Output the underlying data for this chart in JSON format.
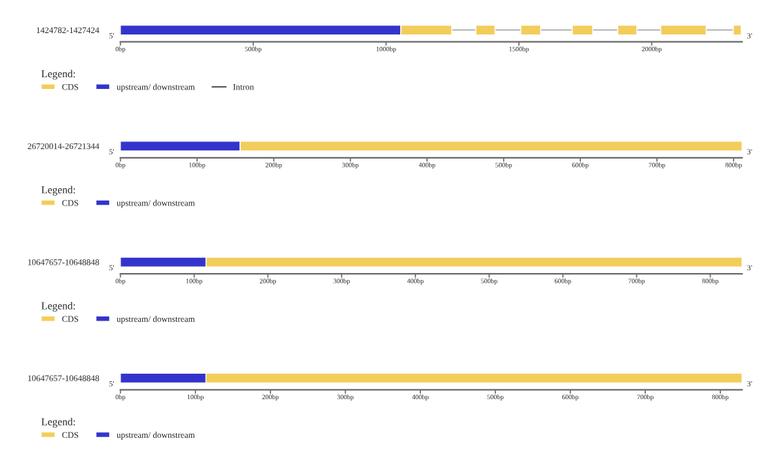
{
  "chart_data": [
    {
      "type": "bar",
      "orientation": "horizontal",
      "categories": [
        "1424782-1427424"
      ],
      "legend_title": "Legend:",
      "legend": "bottom left",
      "annotations": [
        "5'",
        "3'"
      ],
      "series": [
        {
          "name": "CDS",
          "color": "#f3cd5a",
          "values": [
            192
          ],
          "base": [
            1055
          ]
        },
        {
          "color": "#f3cd5a",
          "values": [
            72
          ],
          "base": [
            1338
          ]
        },
        {
          "color": "#f3cd5a",
          "values": [
            75
          ],
          "base": [
            1507
          ]
        },
        {
          "color": "#f3cd5a",
          "values": [
            77
          ],
          "base": [
            1701
          ]
        },
        {
          "color": "#f3cd5a",
          "values": [
            72
          ],
          "base": [
            1872
          ]
        },
        {
          "color": "#f3cd5a",
          "values": [
            171
          ],
          "base": [
            2034
          ]
        },
        {
          "color": "#f3cd5a",
          "values": [
            30
          ],
          "base": [
            2307
          ]
        },
        {
          "name": "upstream/ downstream",
          "color": "#3434cc",
          "values": [
            1055
          ],
          "base": [
            0
          ]
        },
        {
          "name": "Intron",
          "type": "bar",
          "line_style": "solid",
          "color": "#555555",
          "values": [
            1060
          ],
          "base": [
            1247
          ]
        }
      ],
      "xlim": [
        0,
        2340
      ],
      "xticks": [
        {
          "value": 0,
          "label": "0bp"
        },
        {
          "value": 500,
          "label": "500bp"
        },
        {
          "value": 1000,
          "label": "1000bp"
        },
        {
          "value": 1500,
          "label": "1500bp"
        },
        {
          "value": 2000,
          "label": "2000bp"
        }
      ]
    },
    {
      "type": "bar",
      "orientation": "horizontal",
      "categories": [
        "26720014-26721344"
      ],
      "legend_title": "Legend:",
      "legend": "bottom left",
      "annotations": [
        "5'",
        "3'"
      ],
      "series": [
        {
          "name": "CDS",
          "color": "#f3cd5a",
          "values": [
            655
          ],
          "base": [
            156
          ]
        },
        {
          "name": "upstream/ downstream",
          "color": "#3434cc",
          "values": [
            156
          ],
          "base": [
            0
          ]
        }
      ],
      "xlim": [
        0,
        811
      ],
      "xticks": [
        {
          "value": 0,
          "label": "0bp"
        },
        {
          "value": 100,
          "label": "100bp"
        },
        {
          "value": 200,
          "label": "200bp"
        },
        {
          "value": 300,
          "label": "300bp"
        },
        {
          "value": 400,
          "label": "400bp"
        },
        {
          "value": 500,
          "label": "500bp"
        },
        {
          "value": 600,
          "label": "600bp"
        },
        {
          "value": 700,
          "label": "700bp"
        },
        {
          "value": 800,
          "label": "800bp"
        }
      ]
    },
    {
      "type": "bar",
      "orientation": "horizontal",
      "categories": [
        "10647657-10648848"
      ],
      "legend_title": "Legend:",
      "legend": "bottom left",
      "annotations": [
        "5'",
        "3'"
      ],
      "series": [
        {
          "name": "CDS",
          "color": "#f3cd5a",
          "values": [
            727
          ],
          "base": [
            116
          ]
        },
        {
          "name": "upstream/ downstream",
          "color": "#3434cc",
          "values": [
            116
          ],
          "base": [
            0
          ]
        }
      ],
      "xlim": [
        0,
        843
      ],
      "xticks": [
        {
          "value": 0,
          "label": "0bp"
        },
        {
          "value": 100,
          "label": "100bp"
        },
        {
          "value": 200,
          "label": "200bp"
        },
        {
          "value": 300,
          "label": "300bp"
        },
        {
          "value": 400,
          "label": "400bp"
        },
        {
          "value": 500,
          "label": "500bp"
        },
        {
          "value": 600,
          "label": "600bp"
        },
        {
          "value": 700,
          "label": "700bp"
        },
        {
          "value": 800,
          "label": "800bp"
        }
      ]
    },
    {
      "type": "bar",
      "orientation": "horizontal",
      "categories": [
        "10647657-10648848"
      ],
      "legend_title": "Legend:",
      "legend": "bottom left",
      "annotations": [
        "5'",
        "3'"
      ],
      "series": [
        {
          "name": "CDS",
          "color": "#f3cd5a",
          "values": [
            715
          ],
          "base": [
            114
          ]
        },
        {
          "name": "upstream/ downstream",
          "color": "#3434cc",
          "values": [
            114
          ],
          "base": [
            0
          ]
        }
      ],
      "xlim": [
        0,
        829
      ],
      "xticks": [
        {
          "value": 0,
          "label": "0bp"
        },
        {
          "value": 100,
          "label": "100bp"
        },
        {
          "value": 200,
          "label": "200bp"
        },
        {
          "value": 300,
          "label": "300bp"
        },
        {
          "value": 400,
          "label": "400bp"
        },
        {
          "value": 500,
          "label": "500bp"
        },
        {
          "value": 600,
          "label": "600bp"
        },
        {
          "value": 700,
          "label": "700bp"
        },
        {
          "value": 800,
          "label": "800bp"
        }
      ]
    }
  ]
}
